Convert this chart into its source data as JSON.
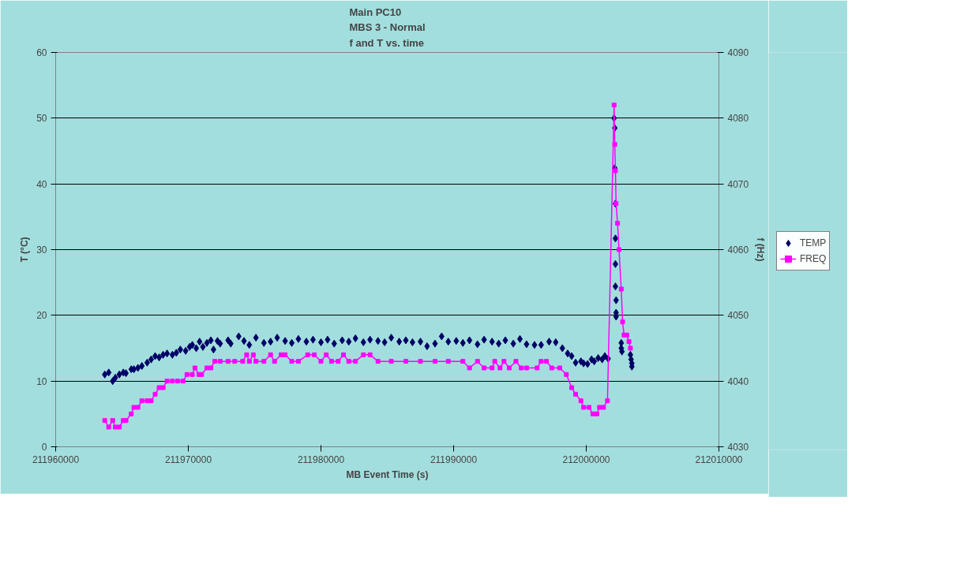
{
  "chart_data": {
    "type": "scatter",
    "title": "Main PC10\nMBS 3 - Normal\nf and T vs. time",
    "xlabel": "MB Event Time (s)",
    "ylabel": "T (°C)",
    "y2label": "f (Hz)",
    "xlim": [
      211960000,
      212010000
    ],
    "xticks": [
      211960000,
      211970000,
      211980000,
      211990000,
      212000000,
      212010000
    ],
    "ylim": [
      0,
      60
    ],
    "yticks": [
      0,
      10,
      20,
      30,
      40,
      50,
      60
    ],
    "y2lim": [
      4030,
      4090
    ],
    "y2ticks": [
      4030,
      4040,
      4050,
      4060,
      4070,
      4080,
      4090
    ],
    "grid": "y",
    "legend": "right",
    "series": [
      {
        "name": "TEMP",
        "marker": "diamond",
        "color": "#000066",
        "x": [
          211963700,
          211964000,
          211964300,
          211964500,
          211964800,
          211965100,
          211965300,
          211965700,
          211965900,
          211966200,
          211966500,
          211966900,
          211967200,
          211967500,
          211967800,
          211968100,
          211968400,
          211968800,
          211969100,
          211969400,
          211969800,
          211970100,
          211970300,
          211970600,
          211970850,
          211971100,
          211971400,
          211971700,
          211971900,
          211972200,
          211972400,
          211973000,
          211973200,
          211973800,
          211974200,
          211974600,
          211975100,
          211975700,
          211976200,
          211976700,
          211977300,
          211977800,
          211978300,
          211978900,
          211979400,
          211980000,
          211980500,
          211981000,
          211981600,
          211982100,
          211982600,
          211983200,
          211983700,
          211984300,
          211984800,
          211985300,
          211985900,
          211986400,
          211986900,
          211987500,
          211988000,
          211988600,
          211989100,
          211989600,
          211990200,
          211990700,
          211991200,
          211991800,
          211992300,
          211992900,
          211993400,
          211993900,
          211994500,
          211995000,
          211995500,
          211996100,
          211996600,
          211997200,
          211997700,
          211998200,
          211998600,
          211998900,
          211999200,
          211999600,
          211999800,
          212000100,
          212000400,
          212000600,
          212000900,
          212001200,
          212001400,
          212001650,
          212002100,
          212002150,
          212002150,
          212002200,
          212002200,
          212002200,
          212002200,
          212002250,
          212002250,
          212002250,
          212002640,
          212002640,
          212002690,
          212003330,
          212003380,
          212003440,
          212003440
        ],
        "values": [
          11,
          11.3,
          10,
          10.5,
          11,
          11.3,
          11.2,
          11.8,
          11.8,
          12,
          12.3,
          12.8,
          13.3,
          13.8,
          13.6,
          14,
          14.2,
          14,
          14.3,
          14.8,
          14.6,
          15.2,
          15.5,
          15,
          16,
          15.2,
          15.8,
          16.2,
          14.8,
          16.1,
          15.7,
          16.2,
          15.7,
          16.8,
          16.1,
          15.5,
          16.6,
          15.8,
          16,
          16.6,
          16.1,
          15.8,
          16.4,
          16,
          16.3,
          15.9,
          16.3,
          15.7,
          16.2,
          16,
          16.5,
          15.9,
          16.3,
          16.1,
          15.9,
          16.6,
          16,
          16.2,
          15.9,
          16,
          15.3,
          15.7,
          16.8,
          16,
          16.1,
          15.8,
          16.2,
          15.6,
          16.3,
          16,
          15.7,
          16.2,
          15.7,
          16.4,
          15.6,
          15.5,
          15.5,
          16,
          15.9,
          15,
          14.2,
          13.8,
          12.8,
          13,
          12.7,
          12.6,
          13.3,
          13,
          13.5,
          13.3,
          13.8,
          13.4,
          50,
          48.5,
          42.4,
          37,
          31.7,
          27.8,
          24.4,
          22.3,
          20.4,
          19.8,
          15.8,
          15,
          14.5,
          14,
          13.3,
          12.7,
          12.2
        ]
      },
      {
        "name": "FREQ",
        "type": "line",
        "marker": "square",
        "axis": "y2",
        "color": "#ff00ff",
        "x": [
          211963700,
          211964000,
          211964300,
          211964500,
          211964800,
          211965100,
          211965300,
          211965700,
          211965900,
          211966200,
          211966500,
          211966900,
          211967200,
          211967500,
          211967800,
          211968100,
          211968400,
          211968800,
          211969200,
          211969600,
          211969900,
          211970300,
          211970500,
          211970800,
          211971000,
          211971400,
          211971700,
          211972000,
          211972400,
          211973000,
          211973500,
          211974100,
          211974400,
          211974600,
          211974900,
          211975100,
          211975700,
          211976200,
          211976500,
          211977000,
          211977300,
          211977800,
          211978300,
          211979000,
          211979500,
          211980000,
          211980400,
          211980800,
          211981300,
          211981700,
          211982100,
          211982600,
          211983200,
          211983700,
          211984300,
          211985300,
          211986400,
          211987500,
          211988600,
          211989600,
          211990700,
          211991200,
          211991800,
          211992300,
          211992900,
          211993100,
          211993500,
          211993800,
          211994200,
          211994700,
          211995100,
          211995500,
          211996300,
          211996600,
          211997000,
          211997400,
          211998000,
          211998500,
          211998900,
          211999200,
          211999600,
          211999800,
          212000200,
          212000500,
          212000800,
          212001000,
          212001300,
          212001600,
          212002100,
          212002150,
          212002200,
          212002250,
          212002360,
          212002470,
          212002640,
          212002740,
          212002850,
          212003060,
          212003220,
          212003330
        ],
        "values": [
          4034,
          4033,
          4034,
          4033,
          4033,
          4034,
          4034,
          4035,
          4036,
          4036,
          4037,
          4037,
          4037,
          4038,
          4039,
          4039,
          4040,
          4040,
          4040,
          4040,
          4041,
          4041,
          4042,
          4041,
          4041,
          4042,
          4042,
          4043,
          4043,
          4043,
          4043,
          4043,
          4044,
          4043,
          4044,
          4043,
          4043,
          4044,
          4043,
          4044,
          4044,
          4043,
          4043,
          4044,
          4044,
          4043,
          4044,
          4043,
          4043,
          4044,
          4043,
          4043,
          4044,
          4044,
          4043,
          4043,
          4043,
          4043,
          4043,
          4043,
          4043,
          4042,
          4043,
          4042,
          4042,
          4043,
          4042,
          4043,
          4042,
          4043,
          4042,
          4042,
          4042,
          4043,
          4043,
          4042,
          4042,
          4041,
          4039,
          4038,
          4037,
          4036,
          4036,
          4035,
          4035,
          4036,
          4036,
          4037,
          4082,
          4076,
          4072,
          4067,
          4064,
          4060,
          4054,
          4049,
          4047,
          4047,
          4046,
          4045
        ]
      }
    ]
  }
}
